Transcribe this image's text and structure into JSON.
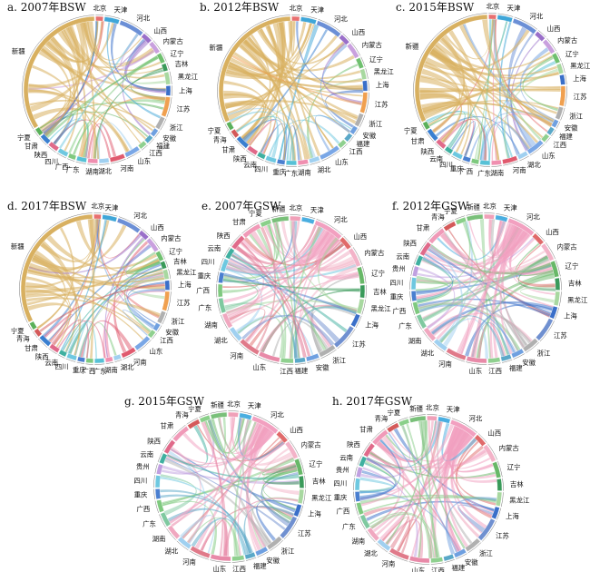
{
  "figure": {
    "panels": [
      {
        "id": "a",
        "title": "a. 2007年BSW"
      },
      {
        "id": "b",
        "title": "b. 2012年BSW"
      },
      {
        "id": "c",
        "title": "c. 2015年BSW"
      },
      {
        "id": "d",
        "title": "d. 2017年BSW"
      },
      {
        "id": "e",
        "title": "e. 2007年GSW"
      },
      {
        "id": "f",
        "title": "f. 2012年GSW"
      },
      {
        "id": "g",
        "title": "g. 2015年GSW"
      },
      {
        "id": "h",
        "title": "h. 2017年GSW"
      }
    ]
  },
  "chart_data": {
    "type": "chord",
    "panels": [
      {
        "id": "a",
        "title": "a. 2007年BSW",
        "regions": [
          "北京",
          "天津",
          "河北",
          "山西",
          "内蒙古",
          "辽宁",
          "吉林",
          "黑龙江",
          "上海",
          "江苏",
          "浙江",
          "安徽",
          "福建",
          "江西",
          "山东",
          "河南",
          "湖北",
          "湖南",
          "广东",
          "广西",
          "四川",
          "陕西",
          "甘肃",
          "宁夏",
          "新疆"
        ],
        "weights": [
          3,
          6,
          10,
          4,
          5,
          4,
          3,
          5,
          4,
          8,
          5,
          3,
          3,
          3,
          6,
          6,
          4,
          4,
          4,
          3,
          4,
          4,
          4,
          3,
          60
        ],
        "dominant": "新疆"
      },
      {
        "id": "b",
        "title": "b. 2012年BSW",
        "regions": [
          "北京",
          "天津",
          "河北",
          "山西",
          "内蒙古",
          "辽宁",
          "黑龙江",
          "上海",
          "江苏",
          "浙江",
          "安徽",
          "福建",
          "江西",
          "山东",
          "湖北",
          "湖南",
          "广东",
          "重庆",
          "四川",
          "云南",
          "陕西",
          "甘肃",
          "青海",
          "宁夏",
          "新疆"
        ],
        "weights": [
          3,
          6,
          10,
          4,
          6,
          4,
          4,
          4,
          8,
          5,
          3,
          3,
          3,
          8,
          4,
          4,
          4,
          3,
          4,
          3,
          4,
          5,
          3,
          3,
          55
        ],
        "dominant": "新疆"
      },
      {
        "id": "c",
        "title": "c. 2015年BSW",
        "regions": [
          "北京",
          "天津",
          "河北",
          "山西",
          "内蒙古",
          "辽宁",
          "黑龙江",
          "上海",
          "江苏",
          "浙江",
          "安徽",
          "福建",
          "江西",
          "山东",
          "湖北",
          "河南",
          "湖南",
          "广东",
          "广西",
          "重庆",
          "四川",
          "云南",
          "陕西",
          "甘肃",
          "宁夏",
          "新疆"
        ],
        "weights": [
          3,
          6,
          10,
          4,
          6,
          4,
          4,
          4,
          8,
          5,
          3,
          3,
          3,
          7,
          4,
          6,
          4,
          4,
          3,
          3,
          4,
          3,
          4,
          5,
          3,
          58
        ],
        "dominant": "新疆"
      },
      {
        "id": "d",
        "title": "d. 2017年BSW",
        "regions": [
          "北京",
          "天津",
          "河北",
          "山西",
          "内蒙古",
          "辽宁",
          "吉林",
          "黑龙江",
          "上海",
          "江苏",
          "浙江",
          "安徽",
          "江西",
          "山东",
          "河南",
          "湖北",
          "湖南",
          "广东",
          "广西",
          "重庆",
          "四川",
          "云南",
          "陕西",
          "甘肃",
          "青海",
          "宁夏",
          "新疆"
        ],
        "weights": [
          3,
          6,
          10,
          4,
          6,
          4,
          3,
          4,
          4,
          8,
          5,
          3,
          3,
          7,
          6,
          3,
          3,
          4,
          3,
          3,
          4,
          3,
          4,
          5,
          3,
          3,
          60
        ],
        "dominant": "新疆"
      },
      {
        "id": "e",
        "title": "e. 2007年GSW",
        "regions": [
          "北京",
          "天津",
          "河北",
          "山西",
          "内蒙古",
          "辽宁",
          "吉林",
          "黑龙江",
          "上海",
          "江苏",
          "浙江",
          "安徽",
          "福建",
          "江西",
          "山东",
          "河南",
          "湖北",
          "湖南",
          "广东",
          "广西",
          "重庆",
          "四川",
          "云南",
          "陕西",
          "甘肃",
          "宁夏",
          "新疆"
        ],
        "weights": [
          5,
          6,
          14,
          6,
          9,
          8,
          6,
          7,
          6,
          12,
          8,
          6,
          5,
          6,
          10,
          10,
          7,
          7,
          7,
          6,
          5,
          6,
          5,
          7,
          9,
          5,
          8
        ],
        "dominant": "河北"
      },
      {
        "id": "f",
        "title": "f. 2012年GSW",
        "regions": [
          "北京",
          "天津",
          "河北",
          "山西",
          "内蒙古",
          "辽宁",
          "吉林",
          "黑龙江",
          "上海",
          "江苏",
          "浙江",
          "安徽",
          "福建",
          "江西",
          "山东",
          "河南",
          "湖北",
          "湖南",
          "广东",
          "广西",
          "重庆",
          "四川",
          "贵州",
          "云南",
          "陕西",
          "甘肃",
          "青海",
          "宁夏",
          "新疆"
        ],
        "weights": [
          5,
          6,
          14,
          6,
          9,
          8,
          6,
          7,
          6,
          12,
          8,
          6,
          5,
          6,
          10,
          10,
          7,
          7,
          7,
          6,
          5,
          6,
          5,
          5,
          7,
          9,
          6,
          5,
          8
        ],
        "dominant": "河北"
      },
      {
        "id": "g",
        "title": "g. 2015年GSW",
        "regions": [
          "北京",
          "天津",
          "河北",
          "山西",
          "内蒙古",
          "辽宁",
          "吉林",
          "黑龙江",
          "上海",
          "江苏",
          "浙江",
          "安徽",
          "福建",
          "江西",
          "山东",
          "河南",
          "湖北",
          "湖南",
          "广东",
          "广西",
          "重庆",
          "四川",
          "贵州",
          "云南",
          "陕西",
          "甘肃",
          "青海",
          "宁夏",
          "新疆"
        ],
        "weights": [
          5,
          6,
          14,
          6,
          9,
          8,
          6,
          7,
          6,
          12,
          8,
          6,
          5,
          6,
          10,
          10,
          7,
          7,
          7,
          6,
          5,
          6,
          5,
          5,
          7,
          9,
          6,
          5,
          8
        ],
        "dominant": "河北"
      },
      {
        "id": "h",
        "title": "h. 2017年GSW",
        "regions": [
          "北京",
          "天津",
          "河北",
          "山西",
          "内蒙古",
          "辽宁",
          "吉林",
          "黑龙江",
          "上海",
          "江苏",
          "浙江",
          "安徽",
          "福建",
          "江西",
          "山东",
          "河南",
          "湖北",
          "湖南",
          "广东",
          "广西",
          "重庆",
          "四川",
          "贵州",
          "云南",
          "陕西",
          "甘肃",
          "青海",
          "宁夏",
          "新疆"
        ],
        "weights": [
          5,
          6,
          14,
          6,
          9,
          8,
          6,
          7,
          6,
          12,
          8,
          6,
          5,
          6,
          10,
          10,
          7,
          7,
          7,
          6,
          5,
          6,
          5,
          5,
          7,
          9,
          6,
          5,
          8
        ],
        "dominant": "河北"
      }
    ]
  }
}
